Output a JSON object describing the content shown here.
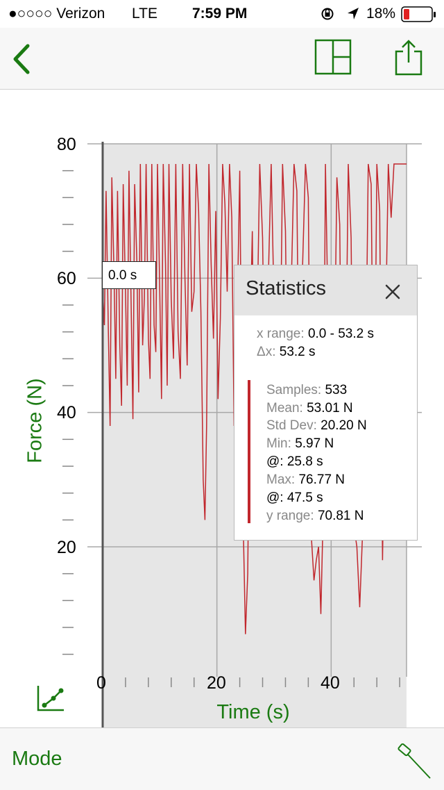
{
  "status_bar": {
    "carrier": "●○○○○ Verizon",
    "network": "LTE",
    "time": "7:59 PM",
    "battery": "18%"
  },
  "nav": {
    "back_icon": "chevron-left-icon",
    "layout_icon": "layout-icon",
    "share_icon": "share-icon"
  },
  "chart": {
    "ylabel": "Force (N)",
    "xlabel": "Time (s)",
    "cursor_label": "0.0 s",
    "series_color": "#c1272d"
  },
  "chart_data": {
    "type": "line",
    "xlabel": "Time (s)",
    "ylabel": "Force (N)",
    "xlim": [
      0,
      53.2
    ],
    "ylim": [
      2,
      80
    ],
    "x_ticks": [
      "0",
      "20",
      "40"
    ],
    "y_ticks": [
      "20",
      "40",
      "60",
      "80"
    ],
    "grid": true,
    "series": [
      {
        "x": [
          0,
          0.3,
          0.6,
          1.0,
          1.3,
          1.6,
          2.0,
          2.3,
          2.6,
          3.0,
          3.3,
          3.6,
          4.0,
          4.3,
          4.6,
          5.0,
          5.3,
          5.6,
          6.0,
          6.3,
          6.6,
          7.0,
          7.3,
          7.6,
          8.0,
          8.3,
          8.6,
          9.0,
          9.3,
          9.6,
          10.0,
          10.3,
          10.6,
          11.0,
          11.3,
          11.6,
          12.0,
          12.4,
          12.8,
          13.2,
          13.6,
          14.0,
          14.4,
          14.8,
          15.2,
          15.6,
          16.0,
          16.4,
          16.8,
          17.2,
          17.6,
          17.9,
          18.2,
          18.6,
          19.0,
          19.4,
          19.8,
          20.2,
          20.6,
          21.0,
          21.4,
          21.8,
          22.2,
          22.6,
          23.0,
          23.5,
          24.0,
          24.5,
          25.0,
          25.4,
          25.8,
          26.2,
          26.6,
          27.0,
          27.5,
          28.0,
          28.5,
          29.0,
          29.5,
          30.0,
          30.5,
          31.0,
          31.5,
          32.0,
          32.5,
          33.0,
          33.5,
          34.0,
          34.5,
          35.0,
          35.5,
          36.0,
          36.5,
          37.0,
          37.4,
          37.8,
          38.2,
          38.6,
          39.0,
          39.5,
          40.0,
          40.5,
          41.0,
          41.5,
          42.0,
          42.5,
          43.0,
          43.5,
          44.0,
          44.5,
          45.0,
          45.5,
          46.0,
          46.5,
          47.0,
          47.5,
          48.0,
          48.5,
          49.0,
          49.5,
          50.0,
          50.5,
          51.0,
          51.5,
          52.0,
          52.5,
          53.2
        ],
        "y": [
          58,
          53,
          73,
          52,
          38,
          75,
          60,
          45,
          73,
          50,
          41,
          74,
          58,
          44,
          76,
          55,
          39,
          74,
          62,
          43,
          77,
          50,
          57,
          77,
          51,
          45,
          77,
          53,
          49,
          77,
          58,
          42,
          77,
          62,
          44,
          77,
          57,
          48,
          77,
          52,
          45,
          77,
          60,
          47,
          77,
          55,
          58,
          77,
          70,
          55,
          30,
          24,
          38,
          77,
          62,
          51,
          70,
          42,
          54,
          77,
          71,
          58,
          77,
          69,
          38,
          52,
          76,
          28,
          7,
          16,
          51,
          67,
          28,
          51,
          77,
          66,
          35,
          60,
          77,
          56,
          25,
          40,
          77,
          67,
          30,
          58,
          77,
          73,
          30,
          62,
          77,
          72,
          22,
          15,
          18,
          20,
          10,
          25,
          77,
          52,
          60,
          41,
          75,
          68,
          24,
          40,
          77,
          66,
          23,
          20,
          11,
          22,
          40,
          77,
          74,
          29,
          77,
          70,
          18,
          50,
          77,
          69,
          77,
          77,
          77,
          77,
          77
        ]
      }
    ]
  },
  "statistics": {
    "title": "Statistics",
    "close_icon": "close-icon",
    "x_range_label": "x range:",
    "x_range_value": "0.0 - 53.2 s",
    "dx_label": "Δx:",
    "dx_value": "53.2 s",
    "samples_label": "Samples:",
    "samples_value": "533",
    "mean_label": "Mean:",
    "mean_value": "53.01 N",
    "std_label": "Std Dev:",
    "std_value": "20.20 N",
    "min_label": "Min:",
    "min_value": "5.97 N",
    "min_at_label": "@:",
    "min_at_value": "25.8 s",
    "max_label": "Max:",
    "max_value": "76.77 N",
    "max_at_label": "@:",
    "max_at_value": "47.5 s",
    "yrange_label": "y range:",
    "yrange_value": "70.81 N"
  },
  "bottom_bar": {
    "mode_label": "Mode",
    "graph_icon": "graph-options-icon",
    "probe_icon": "examine-tool-icon"
  }
}
